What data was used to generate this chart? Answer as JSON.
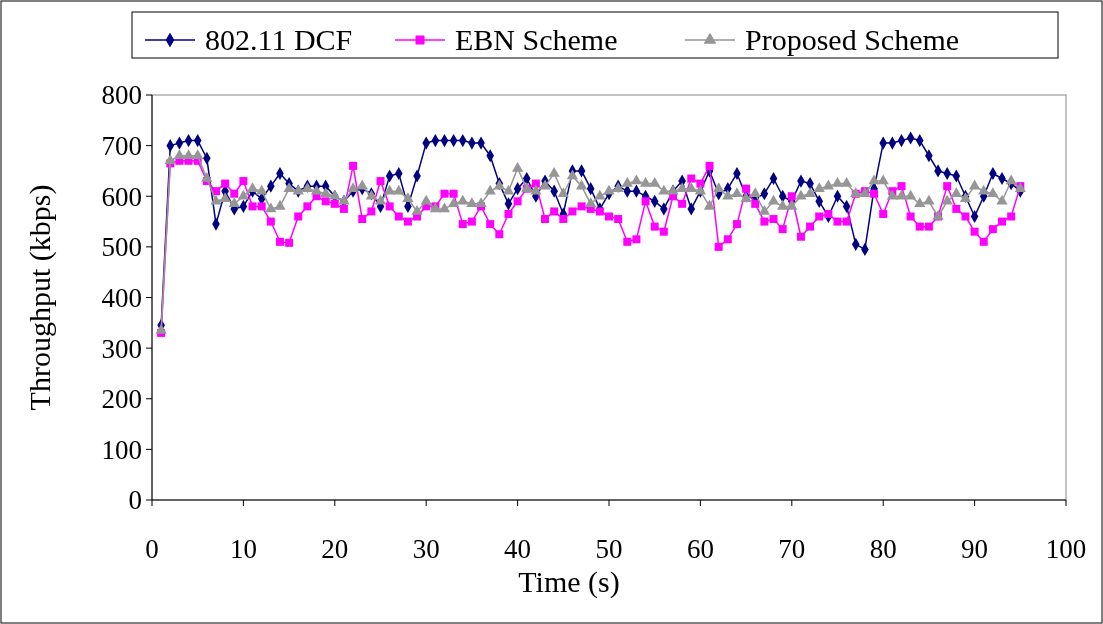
{
  "chart_data": {
    "type": "line",
    "xlabel": "Time (s)",
    "ylabel": "Throughput (kbps)",
    "x": [
      1,
      2,
      3,
      4,
      5,
      6,
      7,
      8,
      9,
      10,
      11,
      12,
      13,
      14,
      15,
      16,
      17,
      18,
      19,
      20,
      21,
      22,
      23,
      24,
      25,
      26,
      27,
      28,
      29,
      30,
      31,
      32,
      33,
      34,
      35,
      36,
      37,
      38,
      39,
      40,
      41,
      42,
      43,
      44,
      45,
      46,
      47,
      48,
      49,
      50,
      51,
      52,
      53,
      54,
      55,
      56,
      57,
      58,
      59,
      60,
      61,
      62,
      63,
      64,
      65,
      66,
      67,
      68,
      69,
      70,
      71,
      72,
      73,
      74,
      75,
      76,
      77,
      78,
      79,
      80,
      81,
      82,
      83,
      84,
      85,
      86,
      87,
      88,
      89,
      90,
      91,
      92,
      93,
      94,
      95
    ],
    "xlim": [
      0,
      100
    ],
    "xticks": [
      0,
      10,
      20,
      30,
      40,
      50,
      60,
      70,
      80,
      90,
      100
    ],
    "ylim": [
      0,
      800
    ],
    "yticks": [
      0,
      100,
      200,
      300,
      400,
      500,
      600,
      700,
      800
    ],
    "grid": false,
    "legend": "top",
    "line_style": "solid",
    "series": [
      {
        "name": "802.11 DCF",
        "color": "#000080",
        "marker": "diamond",
        "values": [
          345,
          700,
          705,
          710,
          710,
          675,
          545,
          610,
          575,
          580,
          610,
          595,
          620,
          645,
          625,
          610,
          620,
          620,
          620,
          600,
          590,
          610,
          615,
          605,
          580,
          640,
          645,
          580,
          640,
          705,
          710,
          710,
          710,
          710,
          705,
          705,
          680,
          625,
          585,
          615,
          635,
          600,
          630,
          610,
          565,
          650,
          650,
          615,
          575,
          605,
          620,
          610,
          610,
          600,
          590,
          575,
          610,
          630,
          575,
          610,
          650,
          605,
          615,
          645,
          600,
          595,
          605,
          635,
          600,
          590,
          630,
          625,
          590,
          560,
          600,
          580,
          505,
          495,
          615,
          705,
          705,
          710,
          715,
          710,
          680,
          650,
          645,
          640,
          600,
          560,
          600,
          645,
          635,
          625,
          610
        ]
      },
      {
        "name": "EBN Scheme",
        "color": "#ff00ff",
        "marker": "square",
        "values": [
          330,
          665,
          670,
          670,
          670,
          630,
          610,
          625,
          605,
          630,
          580,
          580,
          550,
          510,
          508,
          560,
          580,
          600,
          590,
          585,
          575,
          660,
          555,
          570,
          630,
          580,
          560,
          550,
          560,
          580,
          580,
          605,
          605,
          545,
          550,
          580,
          545,
          525,
          565,
          590,
          615,
          625,
          555,
          570,
          555,
          570,
          580,
          575,
          570,
          560,
          555,
          510,
          515,
          590,
          540,
          530,
          600,
          585,
          635,
          625,
          660,
          500,
          515,
          545,
          615,
          585,
          550,
          555,
          535,
          600,
          520,
          540,
          560,
          565,
          550,
          550,
          605,
          610,
          605,
          565,
          610,
          620,
          560,
          540,
          540,
          560,
          620,
          575,
          560,
          530,
          510,
          535,
          550,
          560,
          620
        ]
      },
      {
        "name": "Proposed Scheme",
        "color": "#969696",
        "marker": "triangle",
        "values": [
          335,
          670,
          680,
          680,
          680,
          635,
          590,
          595,
          585,
          600,
          615,
          610,
          575,
          580,
          615,
          610,
          615,
          610,
          605,
          600,
          590,
          615,
          620,
          600,
          590,
          610,
          610,
          595,
          570,
          590,
          575,
          575,
          585,
          590,
          585,
          585,
          610,
          620,
          610,
          655,
          615,
          610,
          620,
          645,
          605,
          640,
          620,
          585,
          600,
          610,
          615,
          625,
          630,
          625,
          625,
          610,
          610,
          615,
          615,
          610,
          580,
          615,
          600,
          605,
          595,
          605,
          570,
          590,
          580,
          580,
          600,
          605,
          615,
          620,
          625,
          625,
          605,
          605,
          630,
          630,
          600,
          600,
          600,
          585,
          590,
          560,
          590,
          605,
          595,
          620,
          610,
          605,
          590,
          630,
          615
        ]
      }
    ]
  }
}
